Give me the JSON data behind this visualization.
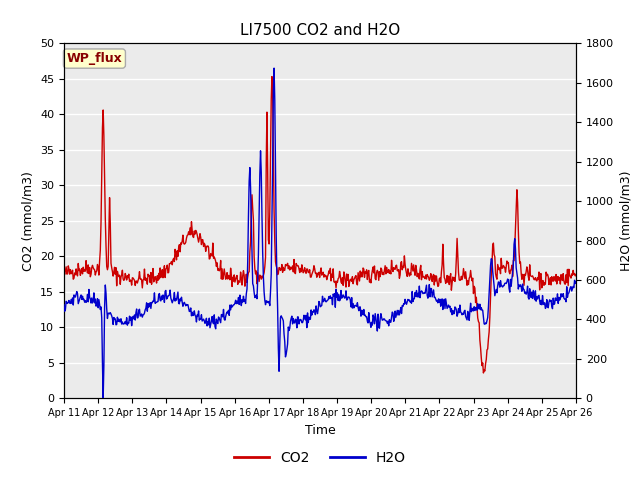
{
  "title": "LI7500 CO2 and H2O",
  "xlabel": "Time",
  "ylabel_left": "CO2 (mmol/m3)",
  "ylabel_right": "H2O (mmol/m3)",
  "co2_color": "#CC0000",
  "h2o_color": "#0000CC",
  "ylim_left": [
    0,
    50
  ],
  "ylim_right": [
    0,
    1800
  ],
  "yticks_left": [
    0,
    5,
    10,
    15,
    20,
    25,
    30,
    35,
    40,
    45,
    50
  ],
  "yticks_right": [
    0,
    200,
    400,
    600,
    800,
    1000,
    1200,
    1400,
    1600,
    1800
  ],
  "bg_color": "#FFFFFF",
  "plot_bg_color": "#EBEBEB",
  "annotation_text": "WP_flux",
  "annotation_bg": "#FFFFCC",
  "annotation_border": "#AAAAAA",
  "tick_labels": [
    "Apr 11",
    "Apr 12",
    "Apr 13",
    "Apr 14",
    "Apr 15",
    "Apr 16",
    "Apr 17",
    "Apr 18",
    "Apr 19",
    "Apr 20",
    "Apr 21",
    "Apr 22",
    "Apr 23",
    "Apr 24",
    "Apr 25",
    "Apr 26"
  ],
  "legend_co2": "CO2",
  "legend_h2o": "H2O",
  "grid_color": "#FFFFFF",
  "linewidth": 1.0,
  "title_fontsize": 11,
  "label_fontsize": 9,
  "tick_fontsize": 8
}
